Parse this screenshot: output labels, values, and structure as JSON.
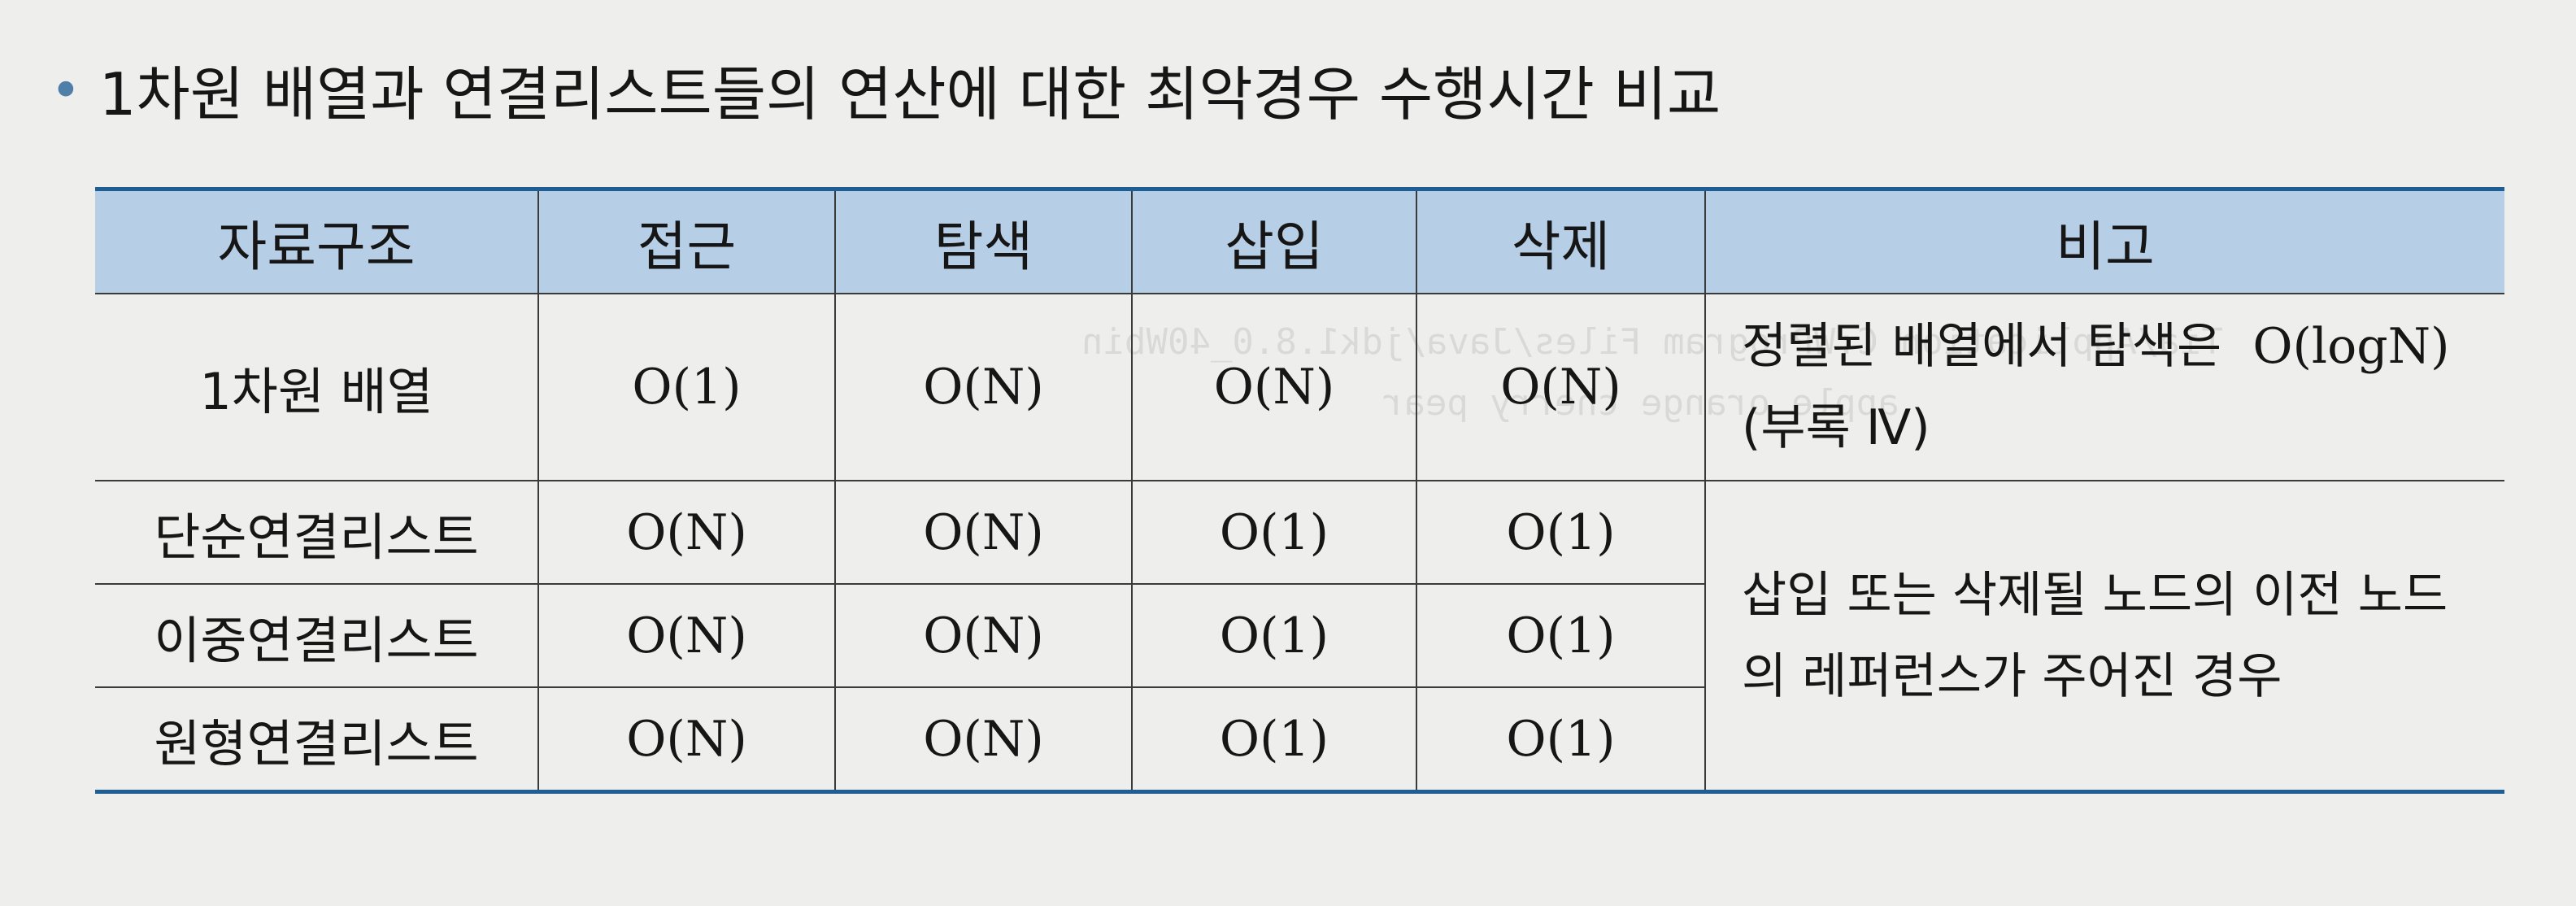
{
  "heading": {
    "bullet": "•",
    "text": "1차원 배열과 연결리스트들의 연산에 대한 최악경우 수행시간 비교"
  },
  "table": {
    "headers": [
      "자료구조",
      "접근",
      "탐색",
      "삽입",
      "삭제",
      "비고"
    ],
    "rows": [
      {
        "name": "1차원 배열",
        "access": "O(1)",
        "search": "O(N)",
        "insert": "O(N)",
        "delete": "O(N)"
      },
      {
        "name": "단순연결리스트",
        "access": "O(N)",
        "search": "O(N)",
        "insert": "O(1)",
        "delete": "O(1)"
      },
      {
        "name": "이중연결리스트",
        "access": "O(N)",
        "search": "O(N)",
        "insert": "O(1)",
        "delete": "O(1)"
      },
      {
        "name": "원형연결리스트",
        "access": "O(N)",
        "search": "O(N)",
        "insert": "O(1)",
        "delete": "O(1)"
      }
    ],
    "notes": {
      "array_line1_prefix": "정렬된 배열에서 탐색은",
      "array_line1_value": "O(logN)",
      "array_line2": "(부록 Ⅳ)",
      "linked_line1": "삽입 또는 삭제될 노드의 이전 노드",
      "linked_line2": "의 레퍼런스가 주어진 경우"
    }
  },
  "colors": {
    "header_bg": "#b7cfe6",
    "rule": "#1f5e94",
    "bullet": "#4f7fa8"
  }
}
